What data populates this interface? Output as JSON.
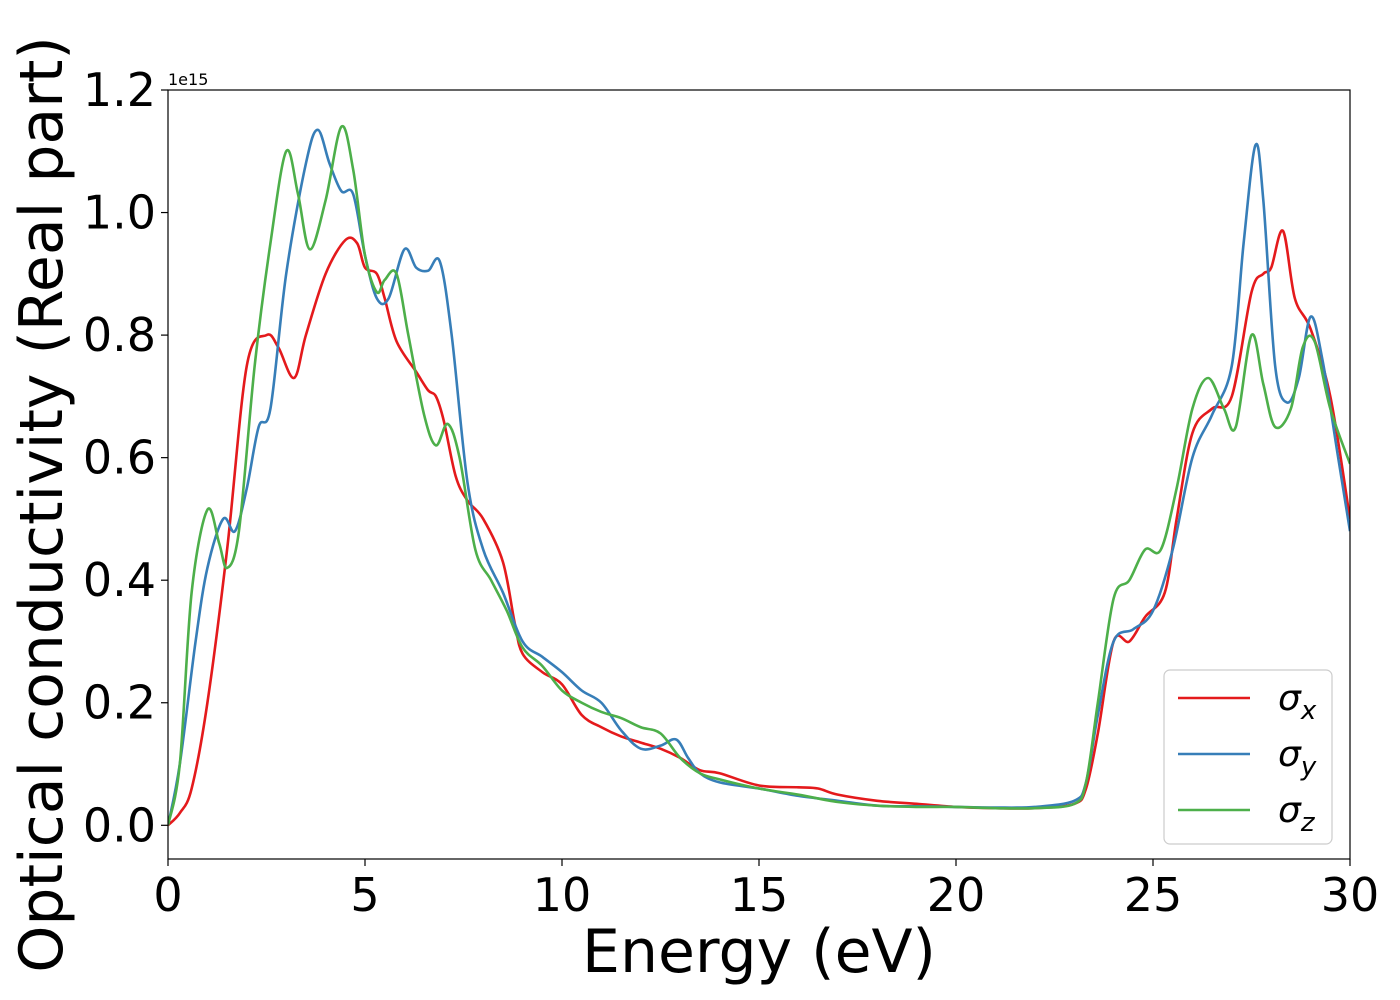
{
  "chart_data": {
    "type": "line",
    "title": "",
    "xlabel": "Energy (eV)",
    "ylabel": "Optical conductivity (Real part)",
    "y_offset_label": "1e15",
    "xlim": [
      0,
      30
    ],
    "ylim": [
      -0.055,
      1.2
    ],
    "y_scale_factor": 1000000000000000.0,
    "xticks": [
      0,
      5,
      10,
      15,
      20,
      25,
      30
    ],
    "xtick_labels": [
      "0",
      "5",
      "10",
      "15",
      "20",
      "25",
      "30"
    ],
    "yticks": [
      0.0,
      0.2,
      0.4,
      0.6,
      0.8,
      1.0,
      1.2
    ],
    "ytick_labels": [
      "0.0",
      "0.2",
      "0.4",
      "0.6",
      "0.8",
      "1.0",
      "1.2"
    ],
    "grid": false,
    "legend_position": "lower-right",
    "series": [
      {
        "name": "σx",
        "sym": "σ",
        "sub": "x",
        "color": "#e41a1c",
        "points": [
          [
            0,
            0
          ],
          [
            0.3,
            0.02
          ],
          [
            0.6,
            0.06
          ],
          [
            1.0,
            0.2
          ],
          [
            1.5,
            0.45
          ],
          [
            2.0,
            0.75
          ],
          [
            2.5,
            0.8
          ],
          [
            2.8,
            0.78
          ],
          [
            3.2,
            0.73
          ],
          [
            3.5,
            0.8
          ],
          [
            4.0,
            0.9
          ],
          [
            4.5,
            0.955
          ],
          [
            4.8,
            0.95
          ],
          [
            5.0,
            0.91
          ],
          [
            5.3,
            0.9
          ],
          [
            5.5,
            0.86
          ],
          [
            5.8,
            0.79
          ],
          [
            6.3,
            0.74
          ],
          [
            6.6,
            0.71
          ],
          [
            6.8,
            0.7
          ],
          [
            7.0,
            0.66
          ],
          [
            7.3,
            0.57
          ],
          [
            7.6,
            0.53
          ],
          [
            8.0,
            0.5
          ],
          [
            8.5,
            0.43
          ],
          [
            8.8,
            0.33
          ],
          [
            9.0,
            0.28
          ],
          [
            9.5,
            0.25
          ],
          [
            10.0,
            0.23
          ],
          [
            10.5,
            0.18
          ],
          [
            11.0,
            0.16
          ],
          [
            11.5,
            0.145
          ],
          [
            12.0,
            0.135
          ],
          [
            12.5,
            0.125
          ],
          [
            13.0,
            0.11
          ],
          [
            13.5,
            0.09
          ],
          [
            14.0,
            0.085
          ],
          [
            15.0,
            0.065
          ],
          [
            16.0,
            0.062
          ],
          [
            16.5,
            0.06
          ],
          [
            17.0,
            0.05
          ],
          [
            18.0,
            0.04
          ],
          [
            19.0,
            0.035
          ],
          [
            20.0,
            0.03
          ],
          [
            21.0,
            0.028
          ],
          [
            22.0,
            0.028
          ],
          [
            23.0,
            0.035
          ],
          [
            23.3,
            0.06
          ],
          [
            23.6,
            0.15
          ],
          [
            24.0,
            0.3
          ],
          [
            24.4,
            0.3
          ],
          [
            24.8,
            0.34
          ],
          [
            25.3,
            0.38
          ],
          [
            25.6,
            0.5
          ],
          [
            26.0,
            0.64
          ],
          [
            26.5,
            0.68
          ],
          [
            27.0,
            0.7
          ],
          [
            27.5,
            0.87
          ],
          [
            27.8,
            0.9
          ],
          [
            28.0,
            0.91
          ],
          [
            28.3,
            0.97
          ],
          [
            28.6,
            0.86
          ],
          [
            29.0,
            0.81
          ],
          [
            29.5,
            0.7
          ],
          [
            30.0,
            0.5
          ]
        ]
      },
      {
        "name": "σy",
        "sym": "σ",
        "sub": "y",
        "color": "#377eb8",
        "points": [
          [
            0,
            0
          ],
          [
            0.3,
            0.1
          ],
          [
            0.7,
            0.3
          ],
          [
            1.0,
            0.42
          ],
          [
            1.4,
            0.5
          ],
          [
            1.7,
            0.48
          ],
          [
            2.0,
            0.55
          ],
          [
            2.3,
            0.65
          ],
          [
            2.6,
            0.68
          ],
          [
            3.0,
            0.9
          ],
          [
            3.5,
            1.08
          ],
          [
            3.8,
            1.135
          ],
          [
            4.1,
            1.08
          ],
          [
            4.4,
            1.035
          ],
          [
            4.7,
            1.03
          ],
          [
            5.0,
            0.93
          ],
          [
            5.3,
            0.86
          ],
          [
            5.6,
            0.86
          ],
          [
            6.0,
            0.94
          ],
          [
            6.3,
            0.91
          ],
          [
            6.6,
            0.905
          ],
          [
            6.9,
            0.92
          ],
          [
            7.2,
            0.8
          ],
          [
            7.6,
            0.56
          ],
          [
            8.0,
            0.45
          ],
          [
            8.5,
            0.38
          ],
          [
            9.0,
            0.3
          ],
          [
            9.5,
            0.275
          ],
          [
            10.0,
            0.25
          ],
          [
            10.5,
            0.22
          ],
          [
            11.0,
            0.2
          ],
          [
            11.5,
            0.155
          ],
          [
            12.0,
            0.125
          ],
          [
            12.5,
            0.13
          ],
          [
            12.9,
            0.14
          ],
          [
            13.2,
            0.11
          ],
          [
            13.5,
            0.085
          ],
          [
            14.0,
            0.07
          ],
          [
            15.0,
            0.06
          ],
          [
            16.0,
            0.048
          ],
          [
            17.0,
            0.04
          ],
          [
            18.0,
            0.032
          ],
          [
            19.0,
            0.031
          ],
          [
            20.0,
            0.03
          ],
          [
            21.0,
            0.029
          ],
          [
            22.0,
            0.03
          ],
          [
            23.0,
            0.04
          ],
          [
            23.3,
            0.07
          ],
          [
            23.6,
            0.18
          ],
          [
            24.0,
            0.3
          ],
          [
            24.5,
            0.32
          ],
          [
            25.0,
            0.35
          ],
          [
            25.5,
            0.45
          ],
          [
            26.0,
            0.6
          ],
          [
            26.5,
            0.67
          ],
          [
            27.0,
            0.75
          ],
          [
            27.3,
            0.95
          ],
          [
            27.6,
            1.11
          ],
          [
            27.8,
            1.02
          ],
          [
            28.1,
            0.75
          ],
          [
            28.4,
            0.69
          ],
          [
            28.7,
            0.73
          ],
          [
            29.0,
            0.83
          ],
          [
            29.3,
            0.76
          ],
          [
            29.7,
            0.6
          ],
          [
            30.0,
            0.48
          ]
        ]
      },
      {
        "name": "σz",
        "sym": "σ",
        "sub": "z",
        "color": "#4daf4a",
        "points": [
          [
            0,
            0
          ],
          [
            0.3,
            0.1
          ],
          [
            0.6,
            0.38
          ],
          [
            1.0,
            0.515
          ],
          [
            1.3,
            0.46
          ],
          [
            1.5,
            0.42
          ],
          [
            1.8,
            0.48
          ],
          [
            2.2,
            0.75
          ],
          [
            2.6,
            0.95
          ],
          [
            3.0,
            1.1
          ],
          [
            3.3,
            1.03
          ],
          [
            3.6,
            0.94
          ],
          [
            4.0,
            1.02
          ],
          [
            4.4,
            1.14
          ],
          [
            4.7,
            1.07
          ],
          [
            5.0,
            0.93
          ],
          [
            5.3,
            0.87
          ],
          [
            5.5,
            0.89
          ],
          [
            5.8,
            0.9
          ],
          [
            6.1,
            0.8
          ],
          [
            6.5,
            0.67
          ],
          [
            6.8,
            0.62
          ],
          [
            7.1,
            0.655
          ],
          [
            7.4,
            0.6
          ],
          [
            7.8,
            0.45
          ],
          [
            8.2,
            0.4
          ],
          [
            8.6,
            0.35
          ],
          [
            9.0,
            0.29
          ],
          [
            9.5,
            0.26
          ],
          [
            10.0,
            0.22
          ],
          [
            10.5,
            0.2
          ],
          [
            11.0,
            0.185
          ],
          [
            11.5,
            0.175
          ],
          [
            12.0,
            0.16
          ],
          [
            12.5,
            0.15
          ],
          [
            13.0,
            0.11
          ],
          [
            13.5,
            0.085
          ],
          [
            14.0,
            0.075
          ],
          [
            15.0,
            0.06
          ],
          [
            16.0,
            0.05
          ],
          [
            17.0,
            0.038
          ],
          [
            18.0,
            0.032
          ],
          [
            19.0,
            0.03
          ],
          [
            20.0,
            0.03
          ],
          [
            21.0,
            0.028
          ],
          [
            22.0,
            0.028
          ],
          [
            23.0,
            0.035
          ],
          [
            23.3,
            0.07
          ],
          [
            23.6,
            0.2
          ],
          [
            24.0,
            0.37
          ],
          [
            24.4,
            0.4
          ],
          [
            24.8,
            0.45
          ],
          [
            25.2,
            0.45
          ],
          [
            25.6,
            0.55
          ],
          [
            26.0,
            0.68
          ],
          [
            26.4,
            0.73
          ],
          [
            26.8,
            0.68
          ],
          [
            27.1,
            0.65
          ],
          [
            27.5,
            0.8
          ],
          [
            27.8,
            0.72
          ],
          [
            28.1,
            0.65
          ],
          [
            28.5,
            0.68
          ],
          [
            28.8,
            0.78
          ],
          [
            29.1,
            0.79
          ],
          [
            29.5,
            0.68
          ],
          [
            30.0,
            0.59
          ]
        ]
      }
    ]
  }
}
